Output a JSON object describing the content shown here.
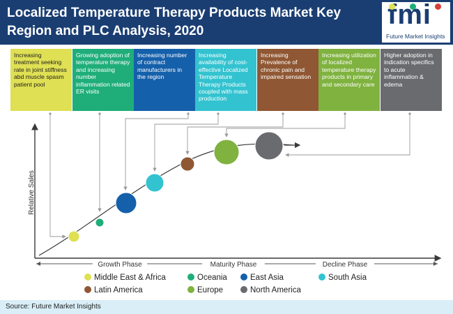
{
  "title": "Localized Temperature Therapy Products Market Key Region and PLC Analysis, 2020",
  "logo": {
    "main": "fmi",
    "sub": "Future Market Insights"
  },
  "boxes": [
    {
      "text": "Increasing treatment seeking rate in joint stiffness abd muscle spasm patient pool",
      "color": "#dfe053"
    },
    {
      "text": "Growing adoption of temperature therapy and increasing number inflammation related ER visits",
      "color": "#1fae79"
    },
    {
      "text": "Increasing number of contract manufacturers in the region",
      "color": "#1560ab"
    },
    {
      "text": "Increasing availability of cost-effective Localized Temperature Therapy Products coupled with mass production",
      "color": "#33c3d0"
    },
    {
      "text": "Increasing Prevalence of chronic pain and impaired sensation",
      "color": "#8f5733"
    },
    {
      "text": "Increasing utilization of localized temperature therapy products in primary and secondary care",
      "color": "#7fb23f"
    },
    {
      "text": "Higher adoption in indication specifics to acute inflammation & edema",
      "color": "#6a6b6e"
    }
  ],
  "chart_data": {
    "type": "scatter",
    "ylabel": "Relative Sales",
    "phases": [
      "Growth Phase",
      "Maturity Phase",
      "Decline Phase"
    ],
    "series": [
      {
        "name": "Middle East & Africa",
        "color": "#dfe053"
      },
      {
        "name": "Oceania",
        "color": "#1fae79"
      },
      {
        "name": "East Asia",
        "color": "#1560ab"
      },
      {
        "name": "South Asia",
        "color": "#33c3d0"
      },
      {
        "name": "Latin America",
        "color": "#8f5733"
      },
      {
        "name": "Europe",
        "color": "#7fb23f"
      },
      {
        "name": "North America",
        "color": "#6a6b6e"
      }
    ]
  },
  "footer": {
    "source": "Source: Future Market Insights"
  }
}
